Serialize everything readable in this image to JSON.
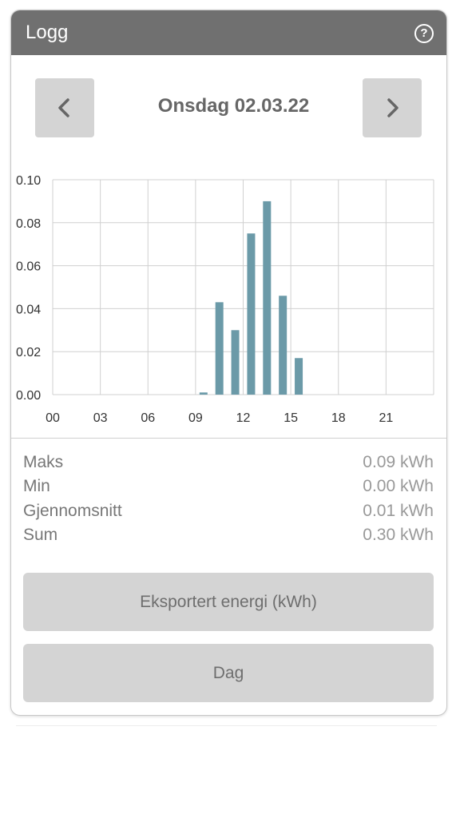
{
  "header": {
    "title": "Logg",
    "help_icon": "help-circle-icon",
    "help_glyph": "?"
  },
  "nav": {
    "prev_icon": "chevron-left-icon",
    "next_icon": "chevron-right-icon",
    "date": "Onsdag 02.03.22"
  },
  "stats": [
    {
      "label": "Maks",
      "value": "0.09 kWh"
    },
    {
      "label": "Min",
      "value": "0.00 kWh"
    },
    {
      "label": "Gjennomsnitt",
      "value": "0.01 kWh"
    },
    {
      "label": "Sum",
      "value": "0.30 kWh"
    }
  ],
  "buttons": {
    "metric": "Eksportert energi (kWh)",
    "period": "Dag"
  },
  "colors": {
    "header_bg": "#707070",
    "bar": "#6b9aa8",
    "button_bg": "#d4d4d4"
  },
  "chart_data": {
    "type": "bar",
    "x_tick_labels": [
      "00",
      "03",
      "06",
      "09",
      "12",
      "15",
      "18",
      "21"
    ],
    "y_tick_labels": [
      "0.00",
      "0.02",
      "0.04",
      "0.06",
      "0.08",
      "0.10"
    ],
    "x": [
      9,
      10,
      11,
      12,
      13,
      14,
      15
    ],
    "values": [
      0.001,
      0.043,
      0.03,
      0.075,
      0.09,
      0.046,
      0.017
    ],
    "xlim": [
      0,
      24
    ],
    "ylim": [
      0,
      0.1
    ],
    "grid": true
  }
}
